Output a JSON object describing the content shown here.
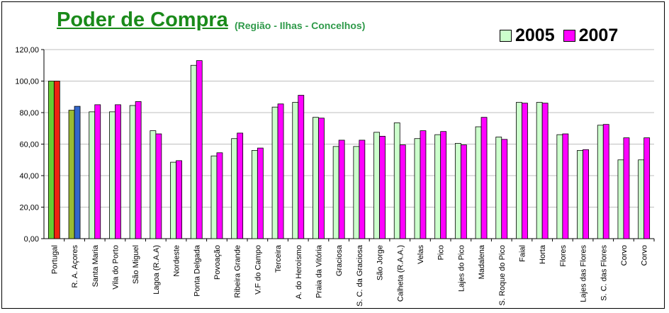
{
  "title": "Poder de Compra",
  "subtitle": "(Região - Ilhas - Concelhos)",
  "legend": [
    {
      "label": "2005",
      "color": "#ccffcc"
    },
    {
      "label": "2007",
      "color": "#ff00ff"
    }
  ],
  "chart_data": {
    "type": "bar",
    "categories": [
      "Portugal",
      "R. A. Açores",
      "Santa Maria",
      "Vila do Porto",
      "São Miguel",
      "Lagoa (R.A.A)",
      "Nordeste",
      "Ponta Delgada",
      "Povoação",
      "Ribeira Grande",
      "V.F do Campo",
      "Terceira",
      "A. do Heroísmo",
      "Praia da Vitória",
      "Graciosa",
      "S. C. da Graciosa",
      "São Jorge",
      "Calheta (R.A.A.)",
      "Velas",
      "Pico",
      "Lajes do Pico",
      "Madalena",
      "S. Roque do Pico",
      "Faial",
      "Horta",
      "Flores",
      "Lajes das Flores",
      "S. C. das Flores",
      "Corvo",
      "Corvo"
    ],
    "series": [
      {
        "name": "2005",
        "color": "#ccffcc",
        "values": [
          100,
          81.5,
          80.5,
          80.5,
          84.5,
          68.5,
          48.5,
          110,
          52.5,
          63.5,
          56,
          83.5,
          86.5,
          77,
          58.5,
          58.5,
          67.5,
          73.5,
          63.5,
          66,
          60.5,
          71,
          64.5,
          86.5,
          86.5,
          66,
          56,
          72,
          50,
          50
        ]
      },
      {
        "name": "2007",
        "color": "#ff00ff",
        "values": [
          100,
          84,
          85,
          85,
          87,
          66.5,
          49.5,
          113,
          54.5,
          67,
          57.5,
          85.5,
          91,
          76.5,
          62.5,
          62.5,
          65,
          59.5,
          68.5,
          68,
          59.5,
          77,
          63,
          86,
          86,
          66.5,
          56.5,
          72.5,
          64,
          64
        ]
      }
    ],
    "special_colors": {
      "portugal_2005": "#66cc33",
      "portugal_2007": "#ee2211",
      "acores_2005": "#99bb33",
      "acores_2007": "#3366cc"
    },
    "ylim": [
      0,
      120
    ],
    "yticks": [
      "0,00",
      "20,00",
      "40,00",
      "60,00",
      "80,00",
      "100,00",
      "120,00"
    ],
    "grid": true,
    "legend_position": "top-right"
  }
}
